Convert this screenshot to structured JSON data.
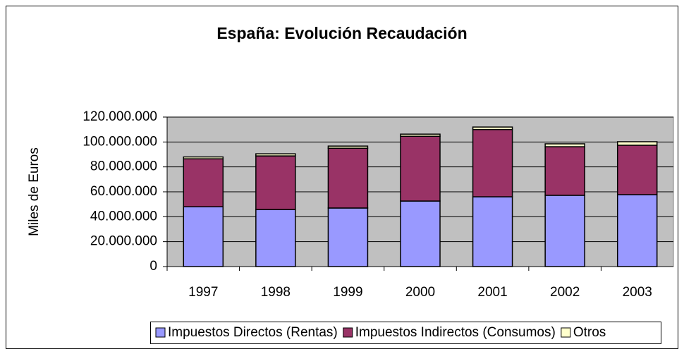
{
  "chart_data": {
    "type": "stacked_bar",
    "title": "España: Evolución Recaudación",
    "y_label": "Miles de Euros",
    "categories": [
      "1997",
      "1998",
      "1999",
      "2000",
      "2001",
      "2002",
      "2003"
    ],
    "series": [
      {
        "name": "Impuestos Directos (Rentas)",
        "color": "#9999ff",
        "values": [
          48000000,
          45800000,
          47000000,
          52600000,
          56000000,
          57200000,
          57700000
        ]
      },
      {
        "name": "Impuestos Indirectos (Consumos)",
        "color": "#993366",
        "values": [
          38500000,
          43000000,
          48000000,
          52000000,
          54000000,
          39000000,
          39700000
        ]
      },
      {
        "name": "Otros",
        "color": "#ffffcc",
        "values": [
          1500000,
          1700000,
          1700000,
          1700000,
          2000000,
          2300000,
          2800000
        ]
      }
    ],
    "ylim": [
      0,
      120000000
    ],
    "yticks": [
      0,
      {
        "value": 20000000,
        "label": "20.000.000"
      },
      {
        "value": 40000000,
        "label": "40.000.000"
      },
      {
        "value": 60000000,
        "label": "60.000.000"
      },
      {
        "value": 80000000,
        "label": "80.000.000"
      },
      {
        "value": 100000000,
        "label": "100.000.000"
      },
      {
        "value": 120000000,
        "label": "120.000.000"
      }
    ],
    "grid": true,
    "plot_background": "#c0c0c0",
    "legend": "bottom"
  }
}
